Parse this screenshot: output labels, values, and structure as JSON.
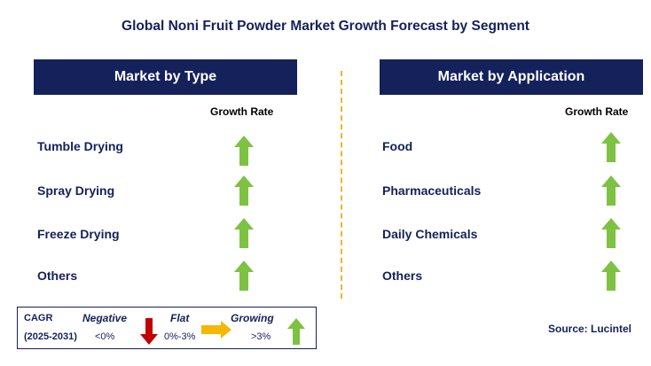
{
  "title": "Global Noni Fruit Powder Market Growth Forecast by Segment",
  "panels": {
    "type": {
      "header": "Market by Type",
      "growth_label": "Growth Rate",
      "rows": [
        {
          "label": "Tumble Drying",
          "growth": "growing"
        },
        {
          "label": "Spray Drying",
          "growth": "growing"
        },
        {
          "label": "Freeze Drying",
          "growth": "growing"
        },
        {
          "label": "Others",
          "growth": "growing"
        }
      ]
    },
    "application": {
      "header": "Market by Application",
      "growth_label": "Growth Rate",
      "rows": [
        {
          "label": "Food",
          "growth": "growing"
        },
        {
          "label": "Pharmaceuticals",
          "growth": "growing"
        },
        {
          "label": "Daily Chemicals",
          "growth": "growing"
        },
        {
          "label": "Others",
          "growth": "growing"
        }
      ]
    }
  },
  "legend": {
    "cagr_label": "CAGR",
    "period": "(2025-2031)",
    "negative": {
      "label": "Negative",
      "range": "<0%",
      "icon": "red-down-arrow-icon"
    },
    "flat": {
      "label": "Flat",
      "range": "0%-3%",
      "icon": "orange-right-arrow-icon"
    },
    "growing": {
      "label": "Growing",
      "range": ">3%",
      "icon": "green-up-arrow-icon"
    }
  },
  "source": "Source: Lucintel",
  "colors": {
    "navy": "#14215a",
    "growing": "#7dc242",
    "flat": "#f5b800",
    "negative": "#c00000",
    "divider": "#f0b323"
  }
}
